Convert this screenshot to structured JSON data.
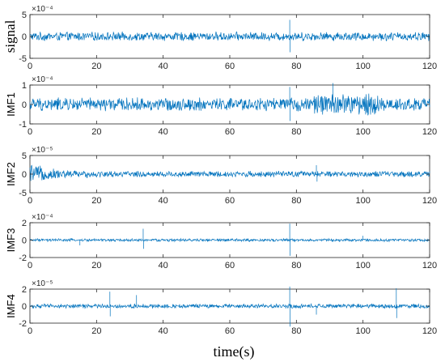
{
  "chart_data": [
    {
      "type": "line",
      "ylabel": "signal",
      "y_exponent": "×10⁻⁴",
      "xlim": [
        0,
        120
      ],
      "ylim": [
        -5,
        5
      ],
      "xticks": [
        0,
        20,
        40,
        60,
        80,
        100,
        120
      ],
      "yticks": [
        -5,
        0,
        5
      ],
      "color": "#0072BD",
      "series": [
        {
          "noise_amplitude": 1.1,
          "spikes": [
            {
              "x": 78,
              "y": 3.8
            },
            {
              "x": 78.1,
              "y": -3.6
            }
          ]
        }
      ]
    },
    {
      "type": "line",
      "ylabel": "IMF1",
      "y_exponent": "×10⁻⁴",
      "xlim": [
        0,
        120
      ],
      "ylim": [
        -1,
        1
      ],
      "xticks": [
        0,
        20,
        40,
        60,
        80,
        100,
        120
      ],
      "yticks": [
        -1,
        0,
        1
      ],
      "color": "#0072BD",
      "series": [
        {
          "noise_amplitude": 0.38,
          "burst": {
            "from": 85,
            "to": 105,
            "amplitude": 0.65
          },
          "spikes": [
            {
              "x": 78,
              "y": 0.9
            },
            {
              "x": 78.1,
              "y": -0.85
            },
            {
              "x": 91,
              "y": 1.1
            }
          ]
        }
      ]
    },
    {
      "type": "line",
      "ylabel": "IMF2",
      "y_exponent": "×10⁻⁵",
      "xlim": [
        0,
        120
      ],
      "ylim": [
        -5,
        5
      ],
      "xticks": [
        0,
        20,
        40,
        60,
        80,
        100,
        120
      ],
      "yticks": [
        -5,
        0,
        5
      ],
      "color": "#0072BD",
      "series": [
        {
          "noise_amplitude": 0.9,
          "decay_start": {
            "amplitude": 2.4,
            "width": 6
          },
          "spikes": [
            {
              "x": 86,
              "y": 2.4
            },
            {
              "x": 86.2,
              "y": -2.0
            }
          ]
        }
      ]
    },
    {
      "type": "line",
      "ylabel": "IMF3",
      "y_exponent": "×10⁻⁴",
      "xlim": [
        0,
        120
      ],
      "ylim": [
        -2,
        2
      ],
      "xticks": [
        0,
        20,
        40,
        60,
        80,
        100,
        120
      ],
      "yticks": [
        -2,
        0,
        2
      ],
      "color": "#0072BD",
      "series": [
        {
          "noise_amplitude": 0.18,
          "spikes": [
            {
              "x": 34,
              "y": 1.3
            },
            {
              "x": 34.1,
              "y": -1.0
            },
            {
              "x": 78,
              "y": 1.9
            },
            {
              "x": 78.1,
              "y": -1.8
            },
            {
              "x": 15,
              "y": -0.6
            },
            {
              "x": 100,
              "y": 0.5
            }
          ]
        }
      ]
    },
    {
      "type": "line",
      "ylabel": "IMF4",
      "y_exponent": "×10⁻⁵",
      "xlim": [
        0,
        120
      ],
      "ylim": [
        -2,
        2
      ],
      "xticks": [
        0,
        20,
        40,
        60,
        80,
        100,
        120
      ],
      "yticks": [
        -2,
        0,
        2
      ],
      "color": "#0072BD",
      "series": [
        {
          "noise_amplitude": 0.28,
          "spikes": [
            {
              "x": 24,
              "y": 1.7
            },
            {
              "x": 24.1,
              "y": -1.2
            },
            {
              "x": 32,
              "y": 1.3
            },
            {
              "x": 78,
              "y": 2.3
            },
            {
              "x": 78.1,
              "y": -2.4
            },
            {
              "x": 86,
              "y": -1.0
            },
            {
              "x": 110,
              "y": 2.1
            },
            {
              "x": 110.1,
              "y": -1.4
            }
          ]
        }
      ]
    }
  ],
  "xlabel": "time(s)"
}
